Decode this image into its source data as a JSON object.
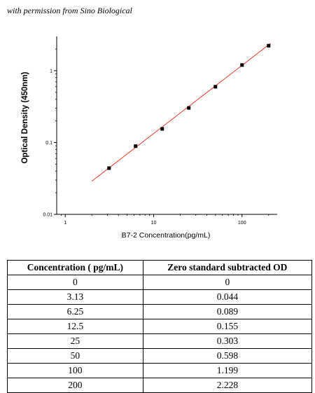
{
  "credit": "with permission from Sino Biological",
  "chart_data": {
    "type": "scatter",
    "xlabel": "B7-2 Concentration(pg/mL)",
    "ylabel": "Optical Density (450nm)",
    "x_scale": "log",
    "y_scale": "log",
    "xlim": [
      0.8,
      250
    ],
    "ylim": [
      0.01,
      3
    ],
    "x_ticks": [
      1,
      10,
      100
    ],
    "x_tick_labels": [
      "1",
      "10",
      "100"
    ],
    "y_ticks": [
      0.01,
      0.1,
      1
    ],
    "y_tick_labels": [
      "0.01",
      "0.1",
      "1"
    ],
    "grid": false,
    "series": [
      {
        "x": [
          3.13,
          6.25,
          12.5,
          25,
          50,
          100,
          200
        ],
        "y": [
          0.044,
          0.089,
          0.155,
          0.303,
          0.598,
          1.199,
          2.228
        ],
        "marker_color": "#000000"
      }
    ],
    "fit_line": {
      "x": [
        2,
        210
      ],
      "y": [
        0.029,
        2.4
      ],
      "color": "#e8392b"
    }
  },
  "table": {
    "headers": [
      "Concentration ( pg/mL)",
      "Zero standard subtracted OD"
    ],
    "rows": [
      [
        "0",
        "0"
      ],
      [
        "3.13",
        "0.044"
      ],
      [
        "6.25",
        "0.089"
      ],
      [
        "12.5",
        "0.155"
      ],
      [
        "25",
        "0.303"
      ],
      [
        "50",
        "0.598"
      ],
      [
        "100",
        "1.199"
      ],
      [
        "200",
        "2.228"
      ]
    ]
  }
}
